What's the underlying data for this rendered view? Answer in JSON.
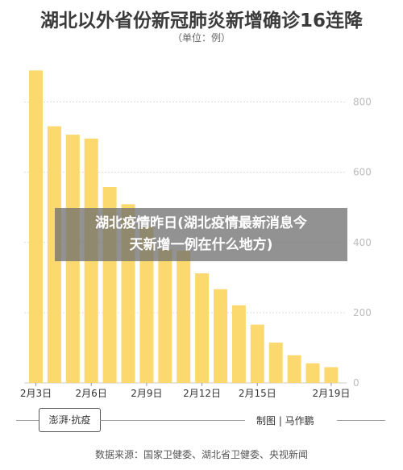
{
  "header": {
    "title": "湖北以外省份新冠肺炎新增确诊16连降",
    "subtitle": "（单位：例）"
  },
  "overlay": {
    "line1": "湖北疫情昨日(湖北疫情最新消息今",
    "line2": "天新增一例在什么地方)"
  },
  "footer": {
    "logo_text": "澎湃·抗疫",
    "credit": "制图 | 马作鹏",
    "source": "数据来源：国家卫健委、湖北省卫健委、央视新闻"
  },
  "colors": {
    "bar": "#fcd96f",
    "grid": "#dddddd",
    "axis_text": "#bbbbbb"
  },
  "chart_data": {
    "type": "bar",
    "categories": [
      "2月3日",
      "2月4日",
      "2月5日",
      "2月6日",
      "2月7日",
      "2月8日",
      "2月9日",
      "2月10日",
      "2月11日",
      "2月12日",
      "2月13日",
      "2月14日",
      "2月15日",
      "2月16日",
      "2月17日",
      "2月18日",
      "2月19日"
    ],
    "x_tick_labels": [
      "2月3日",
      "2月6日",
      "2月9日",
      "2月12日",
      "2月15日",
      "2月19日"
    ],
    "values": [
      890,
      731,
      707,
      696,
      558,
      509,
      444,
      381,
      377,
      312,
      267,
      221,
      166,
      115,
      79,
      56,
      45
    ],
    "ylim": [
      0,
      900
    ],
    "yticks": [
      0,
      200,
      400,
      600,
      800
    ],
    "grid": true
  }
}
